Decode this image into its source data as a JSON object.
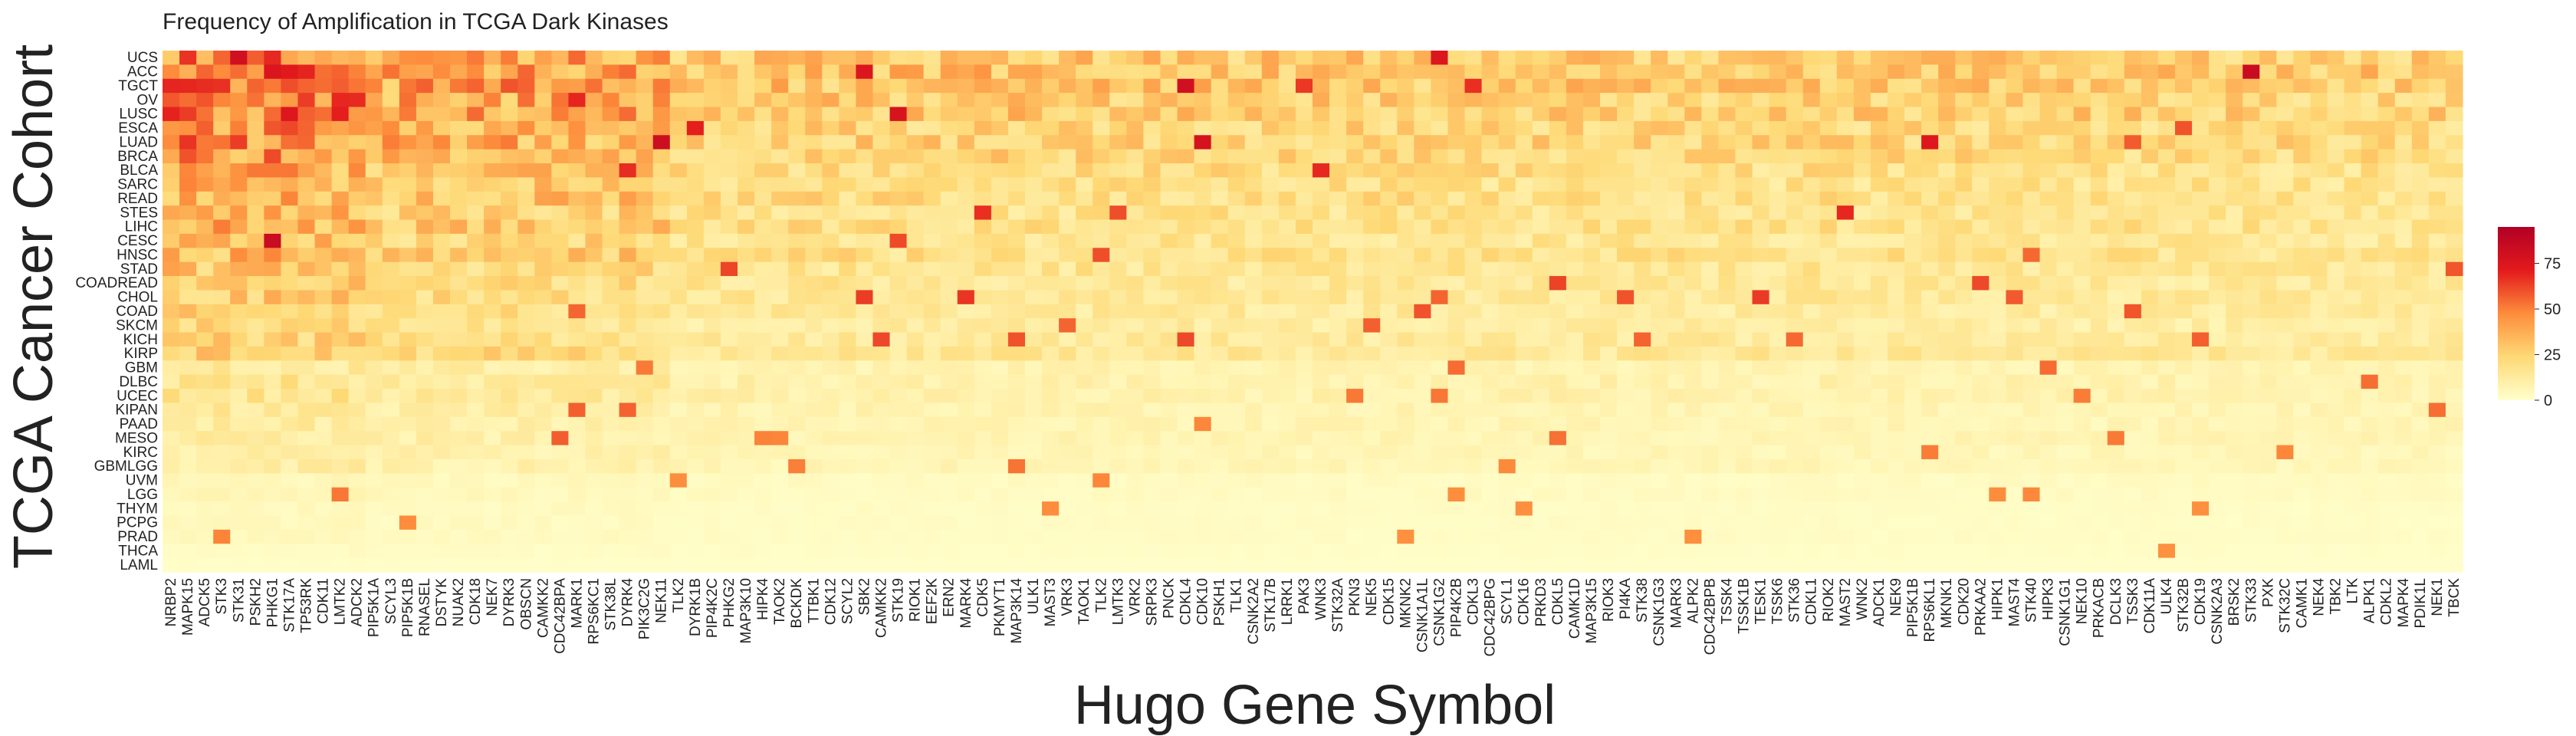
{
  "chart_data": {
    "type": "heatmap",
    "title": "Frequency of Amplification in TCGA Dark Kinases",
    "xlabel": "Hugo Gene Symbol",
    "ylabel": "TCGA Cancer Cohort",
    "colorbar_ticks": [
      0,
      25,
      50,
      75
    ],
    "colorbar_range": [
      0,
      95
    ],
    "colors": {
      "low": "#ffffcc",
      "mid1": "#fed976",
      "mid2": "#fd8d3c",
      "mid3": "#e31a1c",
      "high": "#b10026"
    },
    "y_categories": [
      "UCS",
      "ACC",
      "TGCT",
      "OV",
      "LUSC",
      "ESCA",
      "LUAD",
      "BRCA",
      "BLCA",
      "SARC",
      "READ",
      "STES",
      "LIHC",
      "CESC",
      "HNSC",
      "STAD",
      "COADREAD",
      "CHOL",
      "COAD",
      "SKCM",
      "KICH",
      "KIRP",
      "GBM",
      "DLBC",
      "UCEC",
      "KIPAN",
      "PAAD",
      "MESO",
      "KIRC",
      "GBMLGG",
      "UVM",
      "LGG",
      "THYM",
      "PCPG",
      "PRAD",
      "THCA",
      "LAML"
    ],
    "x_categories": [
      "NRBP2",
      "MAPK15",
      "ADCK5",
      "STK3",
      "STK31",
      "PSKH2",
      "PHKG1",
      "STK17A",
      "TP53RK",
      "CDK11",
      "LMTK2",
      "ADCK2",
      "PIP5K1A",
      "SCYL3",
      "PIP5K1B",
      "RNASEL",
      "DSTYK",
      "NUAK2",
      "CDK18",
      "NEK7",
      "DYRK3",
      "OBSCN",
      "CAMKK2",
      "CDC42BPA",
      "MARK1",
      "RPS6KC1",
      "STK38L",
      "DYRK4",
      "PIK3C2G",
      "NEK11",
      "TLK2",
      "DYRK1B",
      "PIP4K2C",
      "PHKG2",
      "MAP3K10",
      "HIPK4",
      "TAOK2",
      "BCKDK",
      "TTBK1",
      "CDK12",
      "SCYL2",
      "SBK2",
      "CAMKK2",
      "STK19",
      "RIOK1",
      "EEF2K",
      "ERN2",
      "MARK4",
      "CDK5",
      "PKMYT1",
      "MAP3K14",
      "ULK1",
      "MAST3",
      "VRK3",
      "TAOK1",
      "TLK2",
      "LMTK3",
      "VRK2",
      "SRPK3",
      "PNCK",
      "CDKL4",
      "CDK10",
      "PSKH1",
      "TLK1",
      "CSNK2A2",
      "STK17B",
      "LRRK1",
      "PAK3",
      "WNK3",
      "STK32A",
      "PKN3",
      "NEK5",
      "CDK15",
      "MKNK2",
      "CSNK1A1L",
      "CSNK1G2",
      "PIP4K2B",
      "CDKL3",
      "CDC42BPG",
      "SCYL1",
      "CDK16",
      "PRKD3",
      "CDKL5",
      "CAMK1D",
      "MAP3K15",
      "RIOK3",
      "PI4KA",
      "STK38",
      "CSNK1G3",
      "MARK3",
      "ALPK2",
      "CDC42BPB",
      "TSSK4",
      "TSSK1B",
      "TESK1",
      "TSSK6",
      "STK36",
      "CDKL1",
      "RIOK2",
      "MAST2",
      "WNK2",
      "ADCK1",
      "NEK9",
      "PIP5K1B",
      "RPS6KL1",
      "MKNK1",
      "CDK20",
      "PRKAA2",
      "HIPK1",
      "MAST4",
      "STK40",
      "HIPK3",
      "CSNK1G1",
      "NEK10",
      "PRKACB",
      "DCLK3",
      "TSSK3",
      "CDK11A",
      "ULK4",
      "STK32B",
      "CDK19",
      "CSNK2A3",
      "BRSK2",
      "STK33",
      "PXK",
      "STK32C",
      "CAMK1",
      "NEK4",
      "TBK2",
      "LTK",
      "ALPK1",
      "CDKL2",
      "MAPK4",
      "PDIK1L",
      "NEK1",
      "TBCK"
    ]
  }
}
